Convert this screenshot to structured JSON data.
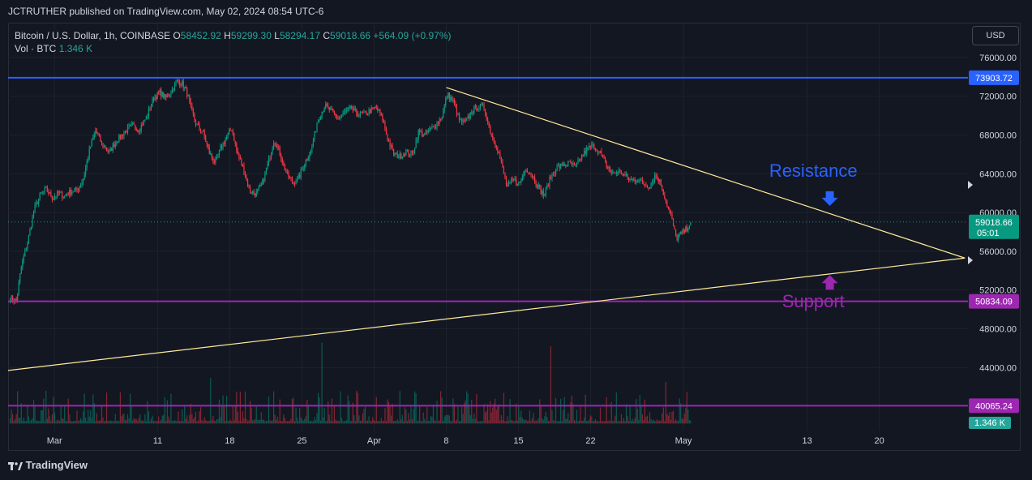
{
  "header": {
    "publish_line": "JCTRUTHER published on TradingView.com, May 02, 2024 08:54 UTC-6"
  },
  "legend": {
    "symbol": "Bitcoin / U.S. Dollar, 1h, COINBASE",
    "o_label": "O",
    "o_value": "58452.92",
    "h_label": "H",
    "h_value": "59299.30",
    "l_label": "L",
    "l_value": "58294.17",
    "c_label": "C",
    "c_value": "59018.66",
    "change": "+564.09 (+0.97%)",
    "vol_label": "Vol · BTC",
    "vol_value": "1.346 K"
  },
  "toolbar": {
    "currency_label": "USD"
  },
  "footer": {
    "brand": "TradingView"
  },
  "chart_data": {
    "type": "candlestick",
    "symbol": "Bitcoin / U.S. Dollar",
    "interval": "1h",
    "exchange": "COINBASE",
    "ylim": [
      37500,
      79500
    ],
    "y_ticks": [
      76000,
      72000,
      68000,
      64000,
      60000,
      56000,
      52000,
      48000,
      44000
    ],
    "y_tick_labels": [
      "76000.00",
      "72000.00",
      "68000.00",
      "64000.00",
      "60000.00",
      "56000.00",
      "52000.00",
      "48000.00",
      "44000.00"
    ],
    "x_tick_labels": [
      "Mar",
      "11",
      "18",
      "25",
      "Apr",
      "8",
      "15",
      "22",
      "May",
      "13",
      "20"
    ],
    "x_tick_days": [
      0,
      10,
      17,
      24,
      31,
      38,
      45,
      52,
      61,
      73,
      80
    ],
    "x_day_range": [
      -4.5,
      88.6
    ],
    "price_path": [
      [
        -4.3,
        51200
      ],
      [
        -3.7,
        50900
      ],
      [
        -3.2,
        54500
      ],
      [
        -2.6,
        57000
      ],
      [
        -2.0,
        60200
      ],
      [
        -1.4,
        61800
      ],
      [
        -0.8,
        62400
      ],
      [
        -0.2,
        61500
      ],
      [
        0.4,
        62000
      ],
      [
        1.0,
        61700
      ],
      [
        1.6,
        62200
      ],
      [
        2.2,
        62300
      ],
      [
        2.8,
        63500
      ],
      [
        3.4,
        66500
      ],
      [
        4.0,
        68500
      ],
      [
        4.6,
        67000
      ],
      [
        5.3,
        66200
      ],
      [
        6.0,
        67400
      ],
      [
        6.8,
        68300
      ],
      [
        7.5,
        69000
      ],
      [
        8.2,
        68600
      ],
      [
        8.9,
        69800
      ],
      [
        9.6,
        71800
      ],
      [
        10.2,
        72400
      ],
      [
        10.8,
        71800
      ],
      [
        11.4,
        72600
      ],
      [
        11.9,
        73600
      ],
      [
        12.4,
        73300
      ],
      [
        12.9,
        72200
      ],
      [
        13.3,
        70400
      ],
      [
        13.8,
        69000
      ],
      [
        14.4,
        68300
      ],
      [
        15.0,
        66200
      ],
      [
        15.6,
        65100
      ],
      [
        16.1,
        66600
      ],
      [
        16.7,
        67800
      ],
      [
        17.2,
        68700
      ],
      [
        17.7,
        66200
      ],
      [
        18.3,
        64600
      ],
      [
        18.9,
        62300
      ],
      [
        19.5,
        61900
      ],
      [
        20.1,
        62800
      ],
      [
        20.7,
        65000
      ],
      [
        21.3,
        67600
      ],
      [
        21.9,
        66000
      ],
      [
        22.5,
        64000
      ],
      [
        23.1,
        63000
      ],
      [
        23.7,
        63600
      ],
      [
        24.3,
        65200
      ],
      [
        24.9,
        66400
      ],
      [
        25.5,
        69500
      ],
      [
        26.2,
        71000
      ],
      [
        26.9,
        70400
      ],
      [
        27.5,
        69700
      ],
      [
        28.2,
        70400
      ],
      [
        28.8,
        70700
      ],
      [
        29.4,
        70200
      ],
      [
        30.0,
        70100
      ],
      [
        30.6,
        70500
      ],
      [
        31.2,
        70800
      ],
      [
        31.8,
        69800
      ],
      [
        32.3,
        67600
      ],
      [
        32.9,
        66000
      ],
      [
        33.5,
        65800
      ],
      [
        34.1,
        66300
      ],
      [
        34.7,
        66000
      ],
      [
        35.3,
        68300
      ],
      [
        35.9,
        68000
      ],
      [
        36.5,
        68600
      ],
      [
        37.1,
        69200
      ],
      [
        37.6,
        70000
      ],
      [
        38.1,
        72200
      ],
      [
        38.7,
        71400
      ],
      [
        39.3,
        69400
      ],
      [
        39.9,
        69300
      ],
      [
        40.5,
        70500
      ],
      [
        41.1,
        71000
      ],
      [
        41.7,
        70800
      ],
      [
        42.3,
        68200
      ],
      [
        42.9,
        66900
      ],
      [
        43.4,
        64800
      ],
      [
        43.9,
        62600
      ],
      [
        44.5,
        63400
      ],
      [
        45.1,
        62900
      ],
      [
        45.7,
        64600
      ],
      [
        46.3,
        63900
      ],
      [
        46.9,
        62700
      ],
      [
        47.5,
        61700
      ],
      [
        48.1,
        63600
      ],
      [
        48.7,
        64600
      ],
      [
        49.3,
        64900
      ],
      [
        49.9,
        65100
      ],
      [
        50.5,
        64700
      ],
      [
        51.1,
        65700
      ],
      [
        51.7,
        66600
      ],
      [
        52.3,
        66900
      ],
      [
        52.9,
        66200
      ],
      [
        53.5,
        64900
      ],
      [
        54.1,
        64000
      ],
      [
        54.7,
        64300
      ],
      [
        55.3,
        63800
      ],
      [
        55.9,
        63300
      ],
      [
        56.5,
        63400
      ],
      [
        57.1,
        63000
      ],
      [
        57.7,
        62700
      ],
      [
        58.3,
        63900
      ],
      [
        58.8,
        63000
      ],
      [
        59.3,
        61200
      ],
      [
        59.8,
        59600
      ],
      [
        60.3,
        57300
      ],
      [
        60.8,
        57800
      ],
      [
        61.3,
        58300
      ],
      [
        61.7,
        59000
      ]
    ],
    "last_day": 61.7,
    "volume": {
      "baseline_price": 40065.24,
      "top_price": 49000,
      "last_value_label": "1.346 K"
    },
    "lines": [
      {
        "kind": "horizontal",
        "price": 73903.72,
        "label": "73903.72",
        "color": "#2962ff"
      },
      {
        "kind": "horizontal",
        "price": 50834.09,
        "label": "50834.09",
        "color": "#9c27b0"
      },
      {
        "kind": "horizontal",
        "price": 40065.24,
        "label": "40065.24",
        "color": "#9c27b0"
      },
      {
        "kind": "trend",
        "from": [
          38.0,
          72900
        ],
        "to": [
          88.3,
          55300
        ],
        "color": "#ffeb99"
      },
      {
        "kind": "trend",
        "from": [
          -4.5,
          43700
        ],
        "to": [
          88.3,
          55300
        ],
        "color": "#ffeb99"
      }
    ],
    "last_price": {
      "price": 59018.66,
      "label": "59018.66",
      "countdown": "05:01",
      "color": "#089981"
    },
    "annotations": [
      {
        "text": "Resistance",
        "day": 73.6,
        "price": 63700,
        "color": "#2962ff",
        "arrow": "down"
      },
      {
        "text": "Support",
        "day": 73.6,
        "price": 50200,
        "color": "#9c27b0",
        "arrow": "up"
      }
    ],
    "grid": true
  }
}
